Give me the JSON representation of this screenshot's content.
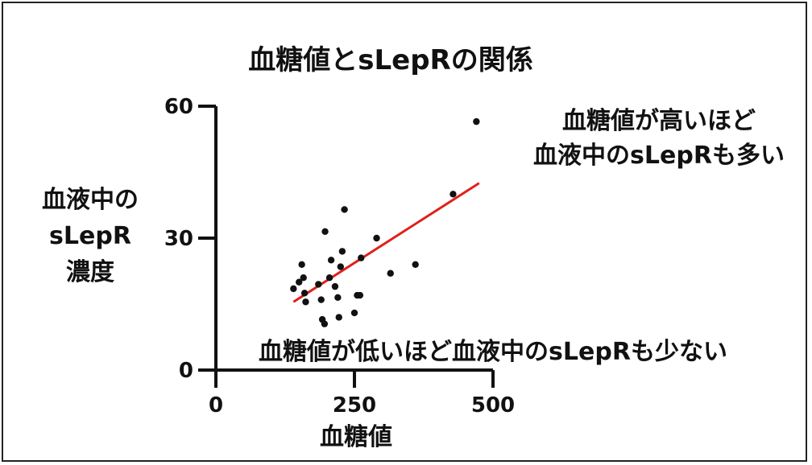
{
  "chart_data": {
    "type": "scatter",
    "title": "血糖値とsLepRの関係",
    "xlabel": "血糖値",
    "ylabel": [
      "血液中の",
      "sLepR",
      "濃度"
    ],
    "xlim": [
      0,
      500
    ],
    "ylim": [
      0,
      60
    ],
    "x_ticks": [
      "0",
      "250",
      "500"
    ],
    "y_ticks": [
      "0",
      "30",
      "60"
    ],
    "grid": false,
    "points": [
      {
        "x": 140,
        "y": 18.5
      },
      {
        "x": 150,
        "y": 20
      },
      {
        "x": 155,
        "y": 24
      },
      {
        "x": 158,
        "y": 21
      },
      {
        "x": 160,
        "y": 17.5
      },
      {
        "x": 162,
        "y": 15.5
      },
      {
        "x": 185,
        "y": 19.5
      },
      {
        "x": 190,
        "y": 16
      },
      {
        "x": 192,
        "y": 11.5
      },
      {
        "x": 196,
        "y": 10.5
      },
      {
        "x": 197,
        "y": 31.5
      },
      {
        "x": 205,
        "y": 21
      },
      {
        "x": 208,
        "y": 25
      },
      {
        "x": 215,
        "y": 19
      },
      {
        "x": 220,
        "y": 16.5
      },
      {
        "x": 222,
        "y": 12
      },
      {
        "x": 225,
        "y": 23.5
      },
      {
        "x": 228,
        "y": 27
      },
      {
        "x": 232,
        "y": 36.5
      },
      {
        "x": 250,
        "y": 13
      },
      {
        "x": 255,
        "y": 17
      },
      {
        "x": 260,
        "y": 17
      },
      {
        "x": 262,
        "y": 25.5
      },
      {
        "x": 290,
        "y": 30
      },
      {
        "x": 315,
        "y": 22
      },
      {
        "x": 360,
        "y": 24
      },
      {
        "x": 428,
        "y": 40
      },
      {
        "x": 470,
        "y": 56.5
      }
    ],
    "trendline": {
      "x": [
        140,
        475
      ],
      "y": [
        15.5,
        42.5
      ],
      "color": "#e0201b"
    },
    "annotations": [
      {
        "lines": [
          "血糖値が高いほど",
          "血液中のsLepRも多い"
        ]
      },
      {
        "lines": [
          "血糖値が低いほど血液中のsLepRも少ない"
        ]
      }
    ]
  }
}
